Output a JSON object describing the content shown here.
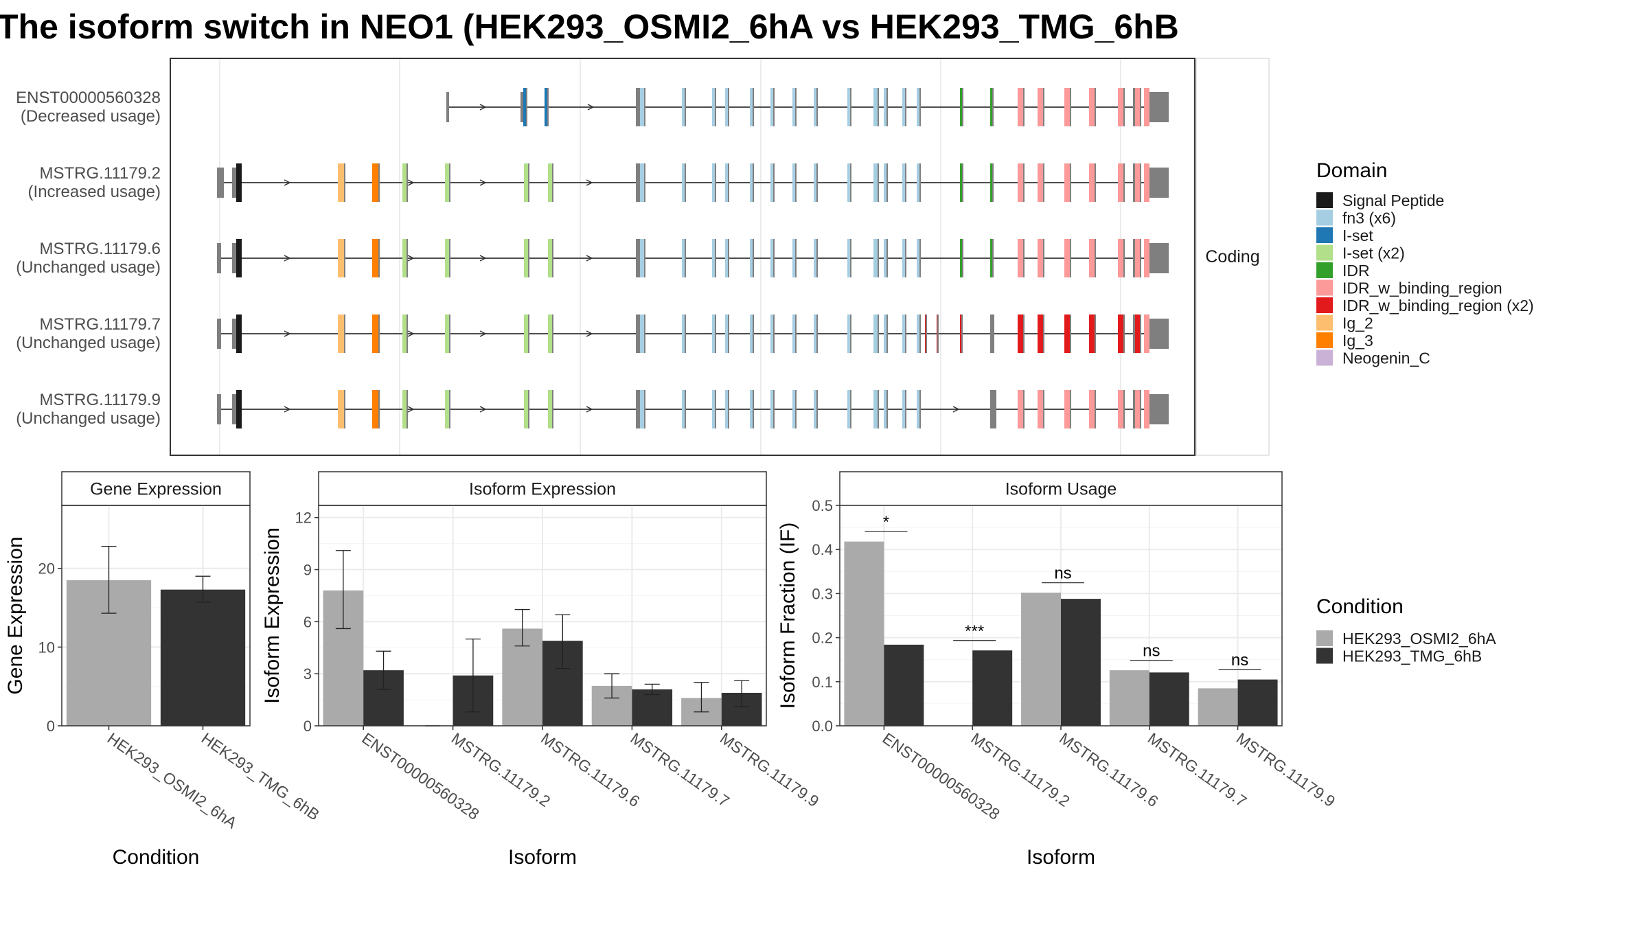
{
  "title": "The isoform switch in NEO1 (HEK293_OSMI2_6hA vs HEK293_TMG_6hB",
  "colors": {
    "cond1": "#aaaaaa",
    "cond2": "#333333",
    "utr": "#7f7f7f",
    "intron": "#333333",
    "grid": "#ebebeb",
    "strip_bg": "#ffffff"
  },
  "structure": {
    "facet_label": "Coding",
    "isoforms": [
      {
        "id": "ENST00000560328",
        "note": "(Decreased usage)"
      },
      {
        "id": "MSTRG.11179.2",
        "note": "(Increased usage)"
      },
      {
        "id": "MSTRG.11179.6",
        "note": "(Unchanged usage)"
      },
      {
        "id": "MSTRG.11179.7",
        "note": "(Unchanged usage)"
      },
      {
        "id": "MSTRG.11179.9",
        "note": "(Unchanged usage)"
      }
    ]
  },
  "legend_domain": {
    "title": "Domain",
    "items": [
      {
        "label": "Signal Peptide",
        "color": "#1a1a1a"
      },
      {
        "label": "fn3 (x6)",
        "color": "#a6cee3"
      },
      {
        "label": "I-set",
        "color": "#1f78b4"
      },
      {
        "label": "I-set (x2)",
        "color": "#b2df8a"
      },
      {
        "label": "IDR",
        "color": "#33a02c"
      },
      {
        "label": "IDR_w_binding_region",
        "color": "#fb9a99"
      },
      {
        "label": "IDR_w_binding_region (x2)",
        "color": "#e31a1c"
      },
      {
        "label": "Ig_2",
        "color": "#fdbf6f"
      },
      {
        "label": "Ig_3",
        "color": "#ff7f00"
      },
      {
        "label": "Neogenin_C",
        "color": "#cab2d6"
      }
    ]
  },
  "legend_condition": {
    "title": "Condition",
    "items": [
      {
        "label": "HEK293_OSMI2_6hA",
        "color": "#aaaaaa"
      },
      {
        "label": "HEK293_TMG_6hB",
        "color": "#333333"
      }
    ]
  },
  "chart_data": [
    {
      "type": "bar",
      "title": "Gene Expression",
      "xlabel": "Condition",
      "ylabel": "Gene Expression",
      "ylim": [
        0,
        28
      ],
      "yticks": [
        0,
        10,
        20
      ],
      "categories": [
        "HEK293_OSMI2_6hA",
        "HEK293_TMG_6hB"
      ],
      "values": [
        18.5,
        17.3
      ],
      "errors": [
        [
          14.3,
          22.8
        ],
        [
          15.7,
          19.0
        ]
      ]
    },
    {
      "type": "bar",
      "title": "Isoform Expression",
      "xlabel": "Isoform",
      "ylabel": "Isoform Expression",
      "ylim": [
        0,
        12.7
      ],
      "yticks": [
        0,
        3,
        6,
        9,
        12
      ],
      "categories": [
        "ENST00000560328",
        "MSTRG.11179.2",
        "MSTRG.11179.6",
        "MSTRG.11179.7",
        "MSTRG.11179.9"
      ],
      "series": [
        {
          "name": "HEK293_OSMI2_6hA",
          "values": [
            7.8,
            0.0,
            5.6,
            2.3,
            1.6
          ],
          "errors": [
            [
              5.6,
              10.1
            ],
            [
              0,
              0
            ],
            [
              4.6,
              6.7
            ],
            [
              1.6,
              3.0
            ],
            [
              0.8,
              2.5
            ]
          ]
        },
        {
          "name": "HEK293_TMG_6hB",
          "values": [
            3.2,
            2.9,
            4.9,
            2.1,
            1.9
          ],
          "errors": [
            [
              2.1,
              4.3
            ],
            [
              0.8,
              5.0
            ],
            [
              3.3,
              6.4
            ],
            [
              1.8,
              2.4
            ],
            [
              1.1,
              2.6
            ]
          ]
        }
      ]
    },
    {
      "type": "bar",
      "title": "Isoform Usage",
      "xlabel": "Isoform",
      "ylabel": "Isoform Fraction (IF)",
      "ylim": [
        0,
        0.5
      ],
      "yticks": [
        0.0,
        0.1,
        0.2,
        0.3,
        0.4,
        0.5
      ],
      "categories": [
        "ENST00000560328",
        "MSTRG.11179.2",
        "MSTRG.11179.6",
        "MSTRG.11179.7",
        "MSTRG.11179.9"
      ],
      "series": [
        {
          "name": "HEK293_OSMI2_6hA",
          "values": [
            0.418,
            0.0,
            0.302,
            0.126,
            0.085
          ]
        },
        {
          "name": "HEK293_TMG_6hB",
          "values": [
            0.184,
            0.171,
            0.288,
            0.121,
            0.105
          ]
        }
      ],
      "significance": [
        "*",
        "***",
        "ns",
        "ns",
        "ns"
      ]
    }
  ]
}
